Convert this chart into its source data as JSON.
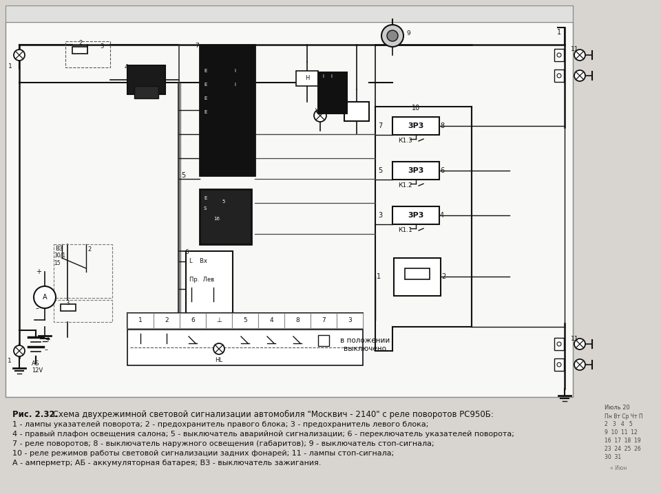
{
  "bg_color": "#d8d5d0",
  "diagram_bg": "#f5f5f5",
  "lc": "#111111",
  "caption_bold": "Рис. 2.32.",
  "caption_main": " Схема двухрежимной световой сигнализации автомобиля \"Москвич - 2140\" с реле поворотов РС950Б:",
  "caption_line2": "1 - лампы указателей поворота; 2 - предохранитель правого блока; 3 - предохранитель левого блока;",
  "caption_line3": "4 - правый плафон освещения салона; 5 - выключатель аварийной сигнализации; 6 - переключатель указателей поворота;",
  "caption_line4": "7 - реле поворотов; 8 - выключатель наружного освещения (габаритов); 9 - выключатель стоп-сигнала;",
  "caption_line5": "10 - реле режимов работы световой сигнализации задних фонарей; 11 - лампы стоп-сигнала;",
  "caption_line6": "А - амперметр; АБ - аккумуляторная батарея; ВЗ - выключатель зажигания.",
  "calendar_top": "Июль 20",
  "calendar_header": "Пн Вт Ср Чт П",
  "calendar_rows": [
    "2   3   4   5",
    "9  10  11  12",
    "16  17  18  19",
    "23  24  25  26",
    "30  31"
  ],
  "calendar_prev": "« Июн",
  "fig_width": 9.6,
  "fig_height": 7.18,
  "dpi": 100
}
